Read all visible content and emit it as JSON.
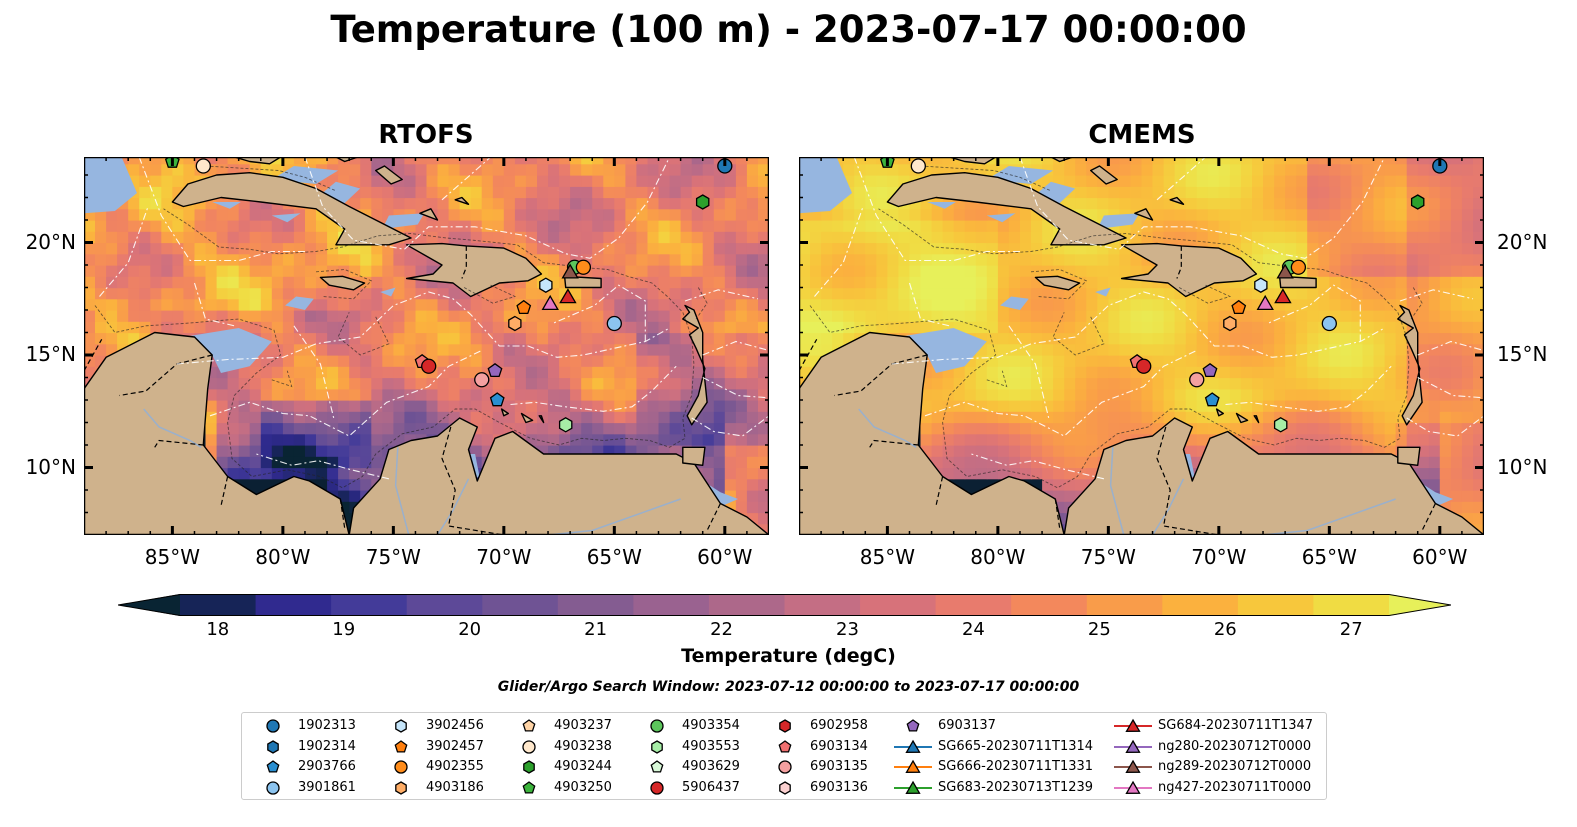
{
  "figure": {
    "title": "Temperature (100 m) - 2023-07-17 00:00:00",
    "panels": [
      {
        "id": "rtofs",
        "title": "RTOFS"
      },
      {
        "id": "cmems",
        "title": "CMEMS"
      }
    ],
    "lon_ticks": [
      "85°W",
      "80°W",
      "75°W",
      "70°W",
      "65°W",
      "60°W"
    ],
    "lat_ticks": [
      "20°N",
      "15°N",
      "10°N"
    ],
    "colorbar": {
      "label": "Temperature (degC)",
      "ticks": [
        "18",
        "19",
        "20",
        "21",
        "22",
        "23",
        "24",
        "25",
        "26",
        "27"
      ],
      "range": [
        18,
        27
      ],
      "extend": "both",
      "colormap": "thermal",
      "colors": [
        "#092433",
        "#162457",
        "#302a8f",
        "#433b99",
        "#5d4998",
        "#6f5394",
        "#845c91",
        "#9a6290",
        "#ad688a",
        "#c46e84",
        "#d7727a",
        "#e87b6d",
        "#f3885c",
        "#f99c4a",
        "#fbb13e",
        "#f7c73c",
        "#f0dc43",
        "#e7f05a"
      ]
    },
    "search_window": "Glider/Argo Search Window: 2023-07-12 00:00:00 to 2023-07-17 00:00:00"
  },
  "legend": [
    {
      "label": "1902313",
      "marker": "circle",
      "color": "#1f77b4"
    },
    {
      "label": "1902314",
      "marker": "hexagon",
      "color": "#1f77b4"
    },
    {
      "label": "2903766",
      "marker": "pentagon",
      "color": "#2a8fd1"
    },
    {
      "label": "3901861",
      "marker": "circle",
      "color": "#8cc4ef"
    },
    {
      "label": "3902456",
      "marker": "hexagon",
      "color": "#c6e6fb"
    },
    {
      "label": "3902457",
      "marker": "pentagon",
      "color": "#ff7f0e"
    },
    {
      "label": "4902355",
      "marker": "circle",
      "color": "#ff8c1a"
    },
    {
      "label": "4903186",
      "marker": "hexagon",
      "color": "#ffad66"
    },
    {
      "label": "4903237",
      "marker": "pentagon",
      "color": "#ffd4a6"
    },
    {
      "label": "4903238",
      "marker": "circle",
      "color": "#ffe8cc"
    },
    {
      "label": "4903244",
      "marker": "hexagon",
      "color": "#2ca02c"
    },
    {
      "label": "4903250",
      "marker": "pentagon",
      "color": "#3cb43c"
    },
    {
      "label": "4903354",
      "marker": "circle",
      "color": "#5cc65c"
    },
    {
      "label": "4903553",
      "marker": "hexagon",
      "color": "#a6eda6"
    },
    {
      "label": "4903629",
      "marker": "pentagon",
      "color": "#d8f8d8"
    },
    {
      "label": "5906437",
      "marker": "circle",
      "color": "#d62728"
    },
    {
      "label": "6902958",
      "marker": "hexagon",
      "color": "#d62728"
    },
    {
      "label": "6903134",
      "marker": "pentagon",
      "color": "#f07070"
    },
    {
      "label": "6903135",
      "marker": "circle",
      "color": "#f4a0a0"
    },
    {
      "label": "6903136",
      "marker": "hexagon",
      "color": "#fbd0d0"
    },
    {
      "label": "6903137",
      "marker": "pentagon",
      "color": "#9467bd"
    },
    {
      "label": "SG665-20230711T1314",
      "marker": "triangle",
      "color": "#1f77b4",
      "line": true
    },
    {
      "label": "SG666-20230711T1331",
      "marker": "triangle",
      "color": "#ff7f0e",
      "line": true
    },
    {
      "label": "SG683-20230713T1239",
      "marker": "triangle",
      "color": "#2ca02c",
      "line": true
    },
    {
      "label": "SG684-20230711T1347",
      "marker": "triangle",
      "color": "#d62728",
      "line": true
    },
    {
      "label": "ng280-20230712T0000",
      "marker": "triangle",
      "color": "#9467bd",
      "line": true
    },
    {
      "label": "ng289-20230712T0000",
      "marker": "triangle",
      "color": "#8c564b",
      "line": true
    },
    {
      "label": "ng427-20230711T0000",
      "marker": "triangle",
      "color": "#e377c2",
      "line": true
    }
  ],
  "platforms": [
    {
      "id": "1902313",
      "lon": -60.0,
      "lat": 23.4
    },
    {
      "id": "4903244",
      "lon": -61.0,
      "lat": 21.8
    },
    {
      "id": "4903250",
      "lon": -85.0,
      "lat": 23.6
    },
    {
      "id": "4903238",
      "lon": -83.6,
      "lat": 23.4
    },
    {
      "id": "4903354",
      "lon": -66.8,
      "lat": 18.9
    },
    {
      "id": "4902355",
      "lon": -66.4,
      "lat": 18.9
    },
    {
      "id": "ng289-20230712T0000",
      "lon": -67.0,
      "lat": 18.7
    },
    {
      "id": "3902456",
      "lon": -68.1,
      "lat": 18.1
    },
    {
      "id": "SG684-20230711T1347",
      "lon": -67.1,
      "lat": 17.6
    },
    {
      "id": "ng427-20230711T0000",
      "lon": -67.9,
      "lat": 17.3
    },
    {
      "id": "3902457",
      "lon": -69.1,
      "lat": 17.1
    },
    {
      "id": "4903186",
      "lon": -69.5,
      "lat": 16.4
    },
    {
      "id": "3901861",
      "lon": -65.0,
      "lat": 16.4
    },
    {
      "id": "6903134",
      "lon": -73.7,
      "lat": 14.7
    },
    {
      "id": "5906437",
      "lon": -73.4,
      "lat": 14.5
    },
    {
      "id": "6903137",
      "lon": -70.4,
      "lat": 14.3
    },
    {
      "id": "6903135",
      "lon": -71.0,
      "lat": 13.9
    },
    {
      "id": "2903766",
      "lon": -70.3,
      "lat": 13.0
    },
    {
      "id": "4903553",
      "lon": -67.2,
      "lat": 11.9
    }
  ]
}
